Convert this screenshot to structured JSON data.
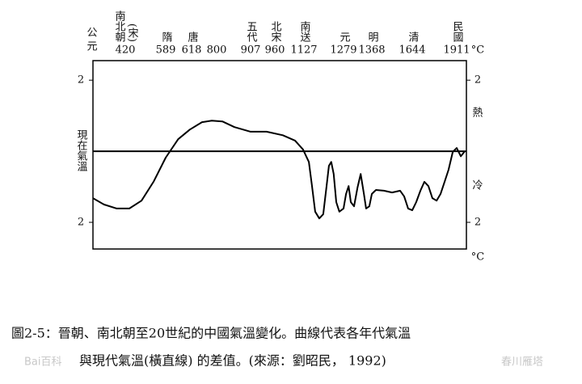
{
  "chart_data": {
    "type": "line",
    "x_axis_label": "公元",
    "y_axis_label": "現在氣溫",
    "unit_label": "°C",
    "warm_label": "熱",
    "cold_label": "冷",
    "xlim": [
      280,
      1970
    ],
    "xticks": [
      420,
      589,
      618,
      800,
      907,
      960,
      1127,
      1279,
      1368,
      1644,
      1911
    ],
    "dynasty_labels": [
      [
        "南北朝",
        "(宋)"
      ],
      [
        "隋"
      ],
      [
        "唐"
      ],
      null,
      [
        "五代"
      ],
      [
        "北宋"
      ],
      [
        "南送"
      ],
      [
        "元"
      ],
      [
        "明"
      ],
      [
        "清"
      ],
      [
        "民國"
      ]
    ],
    "ylim": [
      -2.75,
      2.55
    ],
    "yticks": [
      2,
      {
        "value": -2,
        "label": "2"
      }
    ],
    "color": "#000000",
    "x": [
      280,
      328,
      383,
      437,
      488,
      538,
      589,
      603,
      616,
      694,
      765,
      818,
      856,
      907,
      942,
      1006,
      1076,
      1122,
      1146,
      1158,
      1170,
      1186,
      1201,
      1214,
      1223,
      1232,
      1241,
      1251,
      1263,
      1279,
      1287,
      1295,
      1302,
      1312,
      1323,
      1333,
      1343,
      1350,
      1360,
      1368,
      1396,
      1451,
      1506,
      1561,
      1589,
      1616,
      1644,
      1668,
      1693,
      1717,
      1741,
      1765,
      1790,
      1814,
      1838,
      1862,
      1887,
      1911,
      1936,
      1960
    ],
    "values": [
      -1.32,
      -1.5,
      -1.61,
      -1.61,
      -1.39,
      -0.86,
      -0.18,
      0.34,
      0.61,
      0.82,
      0.86,
      0.84,
      0.68,
      0.55,
      0.55,
      0.45,
      0.3,
      0.05,
      -0.3,
      -0.98,
      -1.7,
      -1.89,
      -1.77,
      -0.98,
      -0.41,
      -0.3,
      -0.64,
      -1.43,
      -1.7,
      -1.61,
      -1.2,
      -0.98,
      -1.43,
      -1.55,
      -1.02,
      -0.64,
      -1.2,
      -1.61,
      -1.55,
      -1.2,
      -1.09,
      -1.11,
      -1.16,
      -1.11,
      -1.27,
      -1.61,
      -1.66,
      -1.43,
      -1.11,
      -0.86,
      -0.98,
      -1.32,
      -1.39,
      -1.2,
      -0.86,
      -0.52,
      -0.02,
      0.09,
      -0.14,
      0
    ],
    "caption": [
      "圖2-5：晉朝、南北朝至20世紀的中國氣溫變化。曲線代表各年代氣溫",
      "與現代氣溫(橫直線) 的差值。(來源：劉昭民， 1992)"
    ],
    "watermarks": [
      "Bai百科",
      "春川雁塔"
    ]
  }
}
